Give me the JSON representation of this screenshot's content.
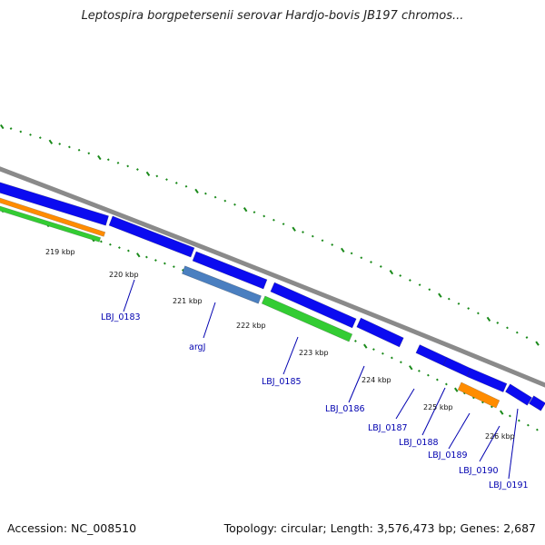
{
  "title": "Leptospira borgpetersenii serovar Hardjo-bovis JB197 chromos...",
  "footer": {
    "accession": "Accession: NC_008510",
    "stats": "Topology: circular; Length: 3,576,473 bp; Genes: 2,687"
  },
  "colors": {
    "backbone": "#8a8a8a",
    "cds": "#0b0bf0",
    "rna_orange": "#ff8c00",
    "rna_green": "#33cc33",
    "steelblue": "#4a7fc0",
    "tick": "#1a8a1a",
    "label": "#0000b0"
  },
  "scale": {
    "ticks": [
      "219 kbp",
      "220 kbp",
      "221 kbp",
      "222 kbp",
      "223 kbp",
      "224 kbp",
      "225 kbp",
      "226 kbp"
    ]
  },
  "genes": [
    {
      "name": "LBJ_0183"
    },
    {
      "name": "argJ"
    },
    {
      "name": "LBJ_0185"
    },
    {
      "name": "LBJ_0186"
    },
    {
      "name": "LBJ_0187"
    },
    {
      "name": "LBJ_0188"
    },
    {
      "name": "LBJ_0189"
    },
    {
      "name": "LBJ_0190"
    },
    {
      "name": "LBJ_0191"
    }
  ]
}
